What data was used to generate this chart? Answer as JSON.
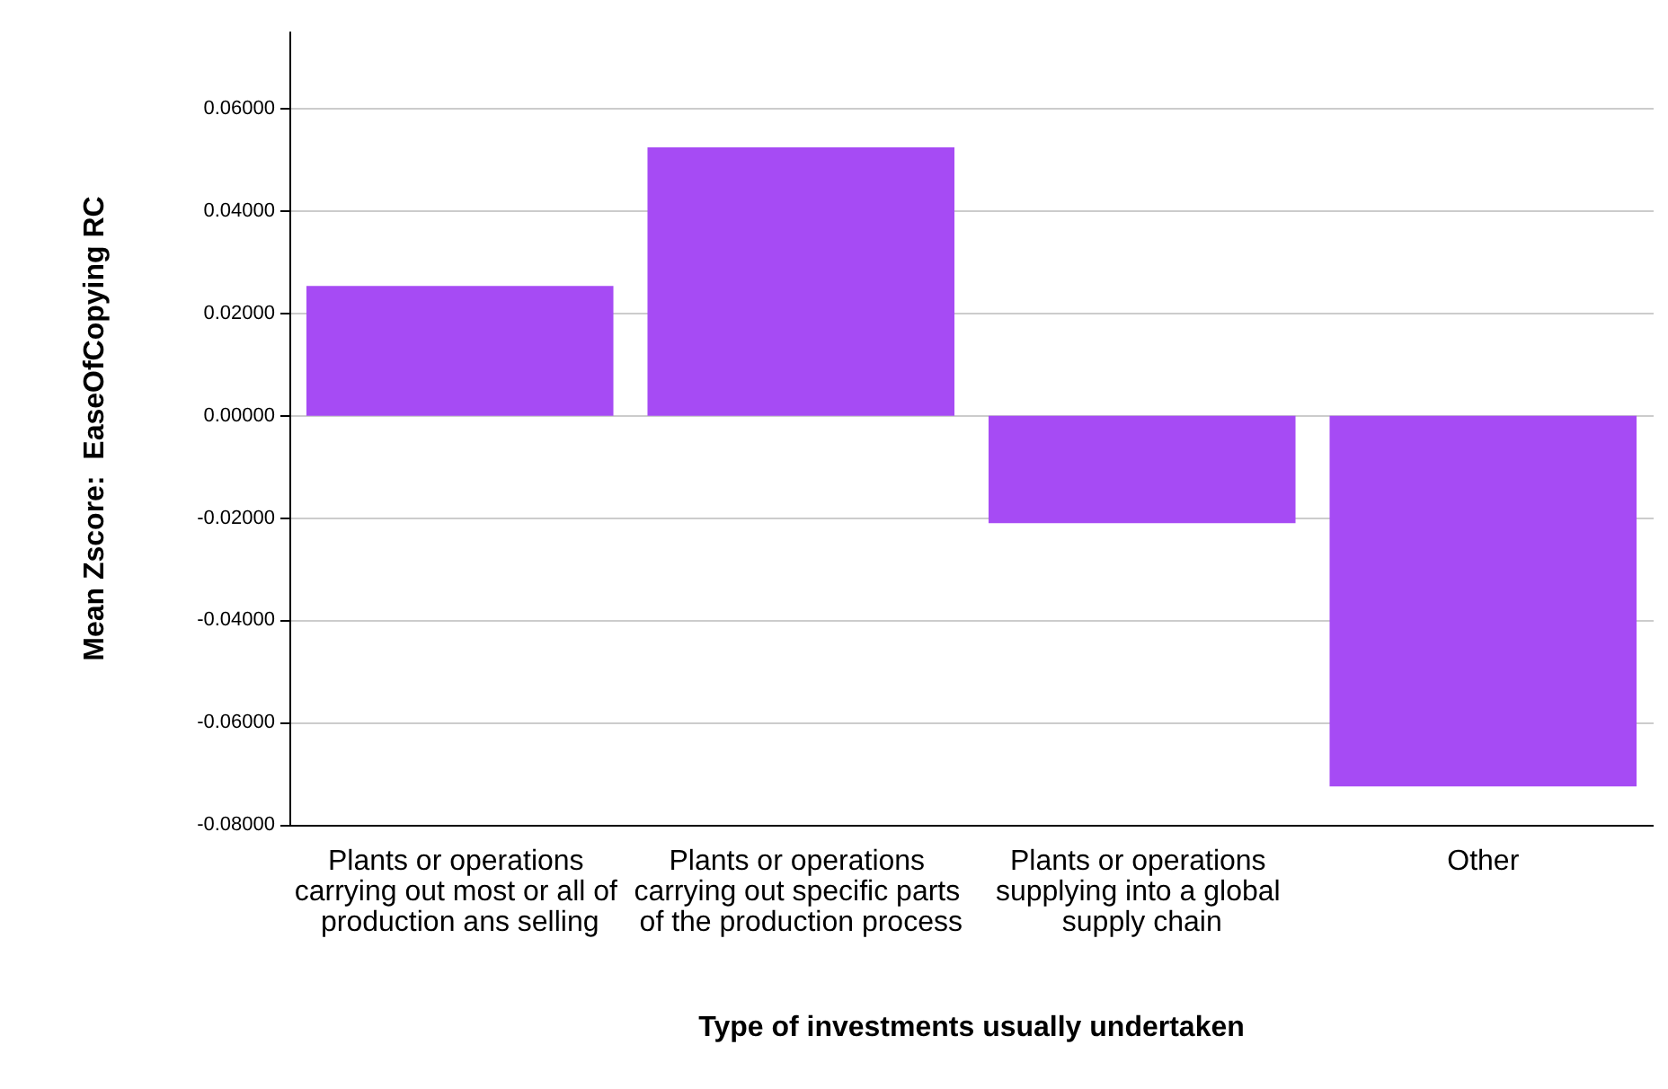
{
  "chart_data": {
    "type": "bar",
    "xlabel": "Type of investments usually undertaken",
    "ylabel": "Mean Zscore:  EaseOfCopying RC",
    "categories": [
      "Plants or operations carrying out most or all of production ans selling",
      "Plants or operations carrying out specific parts of the production process",
      "Plants or operations supplying into a global supply chain",
      "Other"
    ],
    "values": [
      0.0254,
      0.0525,
      -0.021,
      -0.0725
    ],
    "color": "#a64bf4",
    "ylim": [
      -0.08,
      0.075
    ],
    "yticks": [
      {
        "value": -0.08,
        "label": "-0.08000"
      },
      {
        "value": -0.06,
        "label": "-0.06000"
      },
      {
        "value": -0.04,
        "label": "-0.04000"
      },
      {
        "value": -0.02,
        "label": "-0.02000"
      },
      {
        "value": 0,
        "label": "0.00000"
      },
      {
        "value": 0.02,
        "label": "0.02000"
      },
      {
        "value": 0.04,
        "label": "0.04000"
      },
      {
        "value": 0.06,
        "label": "0.06000"
      }
    ],
    "grid": "y"
  }
}
